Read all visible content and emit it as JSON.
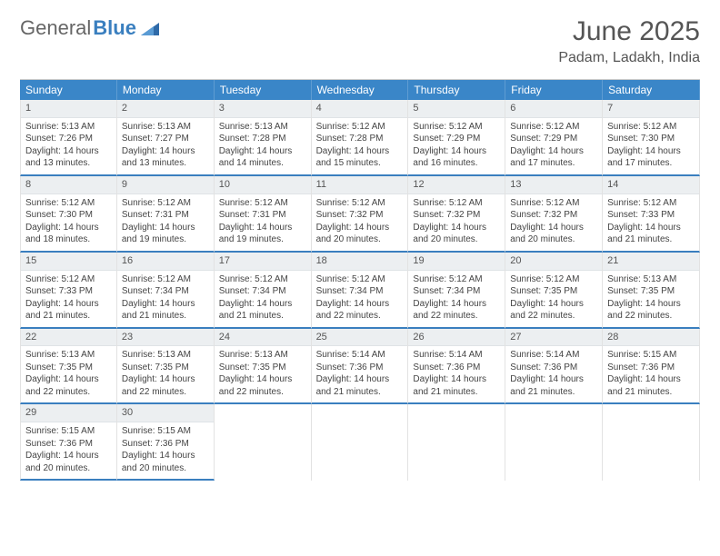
{
  "logo": {
    "part1": "General",
    "part2": "Blue"
  },
  "title": "June 2025",
  "location": "Padam, Ladakh, India",
  "colors": {
    "headerBg": "#3a86c8",
    "headerText": "#ffffff",
    "rule": "#3a7fbf",
    "dayBg": "#eceff1",
    "text": "#444444"
  },
  "weekdays": [
    "Sunday",
    "Monday",
    "Tuesday",
    "Wednesday",
    "Thursday",
    "Friday",
    "Saturday"
  ],
  "labels": {
    "sunrise": "Sunrise:",
    "sunset": "Sunset:",
    "daylight": "Daylight:"
  },
  "days": [
    {
      "n": 1,
      "sr": "5:13 AM",
      "ss": "7:26 PM",
      "dl": "14 hours and 13 minutes."
    },
    {
      "n": 2,
      "sr": "5:13 AM",
      "ss": "7:27 PM",
      "dl": "14 hours and 13 minutes."
    },
    {
      "n": 3,
      "sr": "5:13 AM",
      "ss": "7:28 PM",
      "dl": "14 hours and 14 minutes."
    },
    {
      "n": 4,
      "sr": "5:12 AM",
      "ss": "7:28 PM",
      "dl": "14 hours and 15 minutes."
    },
    {
      "n": 5,
      "sr": "5:12 AM",
      "ss": "7:29 PM",
      "dl": "14 hours and 16 minutes."
    },
    {
      "n": 6,
      "sr": "5:12 AM",
      "ss": "7:29 PM",
      "dl": "14 hours and 17 minutes."
    },
    {
      "n": 7,
      "sr": "5:12 AM",
      "ss": "7:30 PM",
      "dl": "14 hours and 17 minutes."
    },
    {
      "n": 8,
      "sr": "5:12 AM",
      "ss": "7:30 PM",
      "dl": "14 hours and 18 minutes."
    },
    {
      "n": 9,
      "sr": "5:12 AM",
      "ss": "7:31 PM",
      "dl": "14 hours and 19 minutes."
    },
    {
      "n": 10,
      "sr": "5:12 AM",
      "ss": "7:31 PM",
      "dl": "14 hours and 19 minutes."
    },
    {
      "n": 11,
      "sr": "5:12 AM",
      "ss": "7:32 PM",
      "dl": "14 hours and 20 minutes."
    },
    {
      "n": 12,
      "sr": "5:12 AM",
      "ss": "7:32 PM",
      "dl": "14 hours and 20 minutes."
    },
    {
      "n": 13,
      "sr": "5:12 AM",
      "ss": "7:32 PM",
      "dl": "14 hours and 20 minutes."
    },
    {
      "n": 14,
      "sr": "5:12 AM",
      "ss": "7:33 PM",
      "dl": "14 hours and 21 minutes."
    },
    {
      "n": 15,
      "sr": "5:12 AM",
      "ss": "7:33 PM",
      "dl": "14 hours and 21 minutes."
    },
    {
      "n": 16,
      "sr": "5:12 AM",
      "ss": "7:34 PM",
      "dl": "14 hours and 21 minutes."
    },
    {
      "n": 17,
      "sr": "5:12 AM",
      "ss": "7:34 PM",
      "dl": "14 hours and 21 minutes."
    },
    {
      "n": 18,
      "sr": "5:12 AM",
      "ss": "7:34 PM",
      "dl": "14 hours and 22 minutes."
    },
    {
      "n": 19,
      "sr": "5:12 AM",
      "ss": "7:34 PM",
      "dl": "14 hours and 22 minutes."
    },
    {
      "n": 20,
      "sr": "5:12 AM",
      "ss": "7:35 PM",
      "dl": "14 hours and 22 minutes."
    },
    {
      "n": 21,
      "sr": "5:13 AM",
      "ss": "7:35 PM",
      "dl": "14 hours and 22 minutes."
    },
    {
      "n": 22,
      "sr": "5:13 AM",
      "ss": "7:35 PM",
      "dl": "14 hours and 22 minutes."
    },
    {
      "n": 23,
      "sr": "5:13 AM",
      "ss": "7:35 PM",
      "dl": "14 hours and 22 minutes."
    },
    {
      "n": 24,
      "sr": "5:13 AM",
      "ss": "7:35 PM",
      "dl": "14 hours and 22 minutes."
    },
    {
      "n": 25,
      "sr": "5:14 AM",
      "ss": "7:36 PM",
      "dl": "14 hours and 21 minutes."
    },
    {
      "n": 26,
      "sr": "5:14 AM",
      "ss": "7:36 PM",
      "dl": "14 hours and 21 minutes."
    },
    {
      "n": 27,
      "sr": "5:14 AM",
      "ss": "7:36 PM",
      "dl": "14 hours and 21 minutes."
    },
    {
      "n": 28,
      "sr": "5:15 AM",
      "ss": "7:36 PM",
      "dl": "14 hours and 21 minutes."
    },
    {
      "n": 29,
      "sr": "5:15 AM",
      "ss": "7:36 PM",
      "dl": "14 hours and 20 minutes."
    },
    {
      "n": 30,
      "sr": "5:15 AM",
      "ss": "7:36 PM",
      "dl": "14 hours and 20 minutes."
    }
  ],
  "grid": {
    "startWeekday": 0,
    "totalCells": 35
  }
}
